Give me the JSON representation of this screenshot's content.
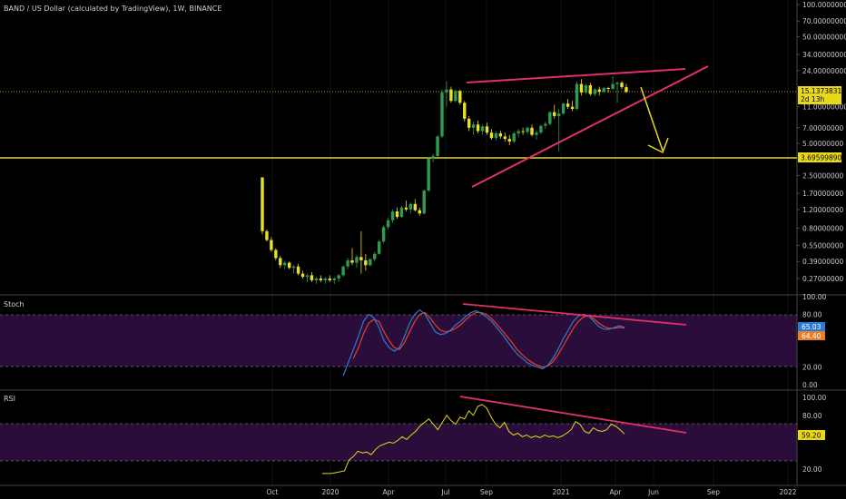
{
  "title": "BAND / US Dollar (calculated by TradingView), 1W, BINANCE",
  "colors": {
    "background": "#000000",
    "up_candle": "#2e9b52",
    "down_candle": "#e8e020",
    "trendline": "#e0306a",
    "support": "#e8d818",
    "arrow": "#e8d818",
    "osc_band": "#2a0d3a",
    "stoch_k": "#2a7ad8",
    "stoch_d": "#e8402a",
    "rsi": "#e8d818",
    "grid": "#1a1a1a"
  },
  "price_pane": {
    "y_ticks": [
      "100.00000000",
      "70.00000000",
      "50.00000000",
      "34.00000000",
      "24.00000000",
      "11.00000000",
      "7.00000000",
      "5.00000000",
      "2.50000000",
      "1.70000000",
      "1.20000000",
      "0.80000000",
      "0.55000000",
      "0.39000000",
      "0.27000000"
    ],
    "current_price": {
      "value": "15.13738317",
      "countdown": "2d 13h"
    },
    "support_level": "3.69599890"
  },
  "stoch_pane": {
    "name": "Stoch",
    "y_ticks": [
      "100.00",
      "80.00",
      "20.00",
      "0.00"
    ],
    "k_value": "65.03",
    "d_value": "64.40"
  },
  "rsi_pane": {
    "name": "RSI",
    "y_ticks": [
      "100.00",
      "80.00",
      "20.00"
    ],
    "value": "59.20"
  },
  "x_axis": {
    "labels": [
      "Oct",
      "2020",
      "Apr",
      "Jul",
      "Sep",
      "2021",
      "Apr",
      "Jun",
      "Sep",
      "2022"
    ]
  },
  "chart_data": {
    "type": "candlestick",
    "title": "BAND / US Dollar (calculated by TradingView), 1W, BINANCE",
    "scale": "log",
    "ohlc_weekly": [
      [
        2.4,
        2.4,
        0.7,
        0.75
      ],
      [
        0.75,
        0.78,
        0.6,
        0.62
      ],
      [
        0.62,
        0.66,
        0.48,
        0.5
      ],
      [
        0.5,
        0.52,
        0.4,
        0.42
      ],
      [
        0.42,
        0.44,
        0.34,
        0.36
      ],
      [
        0.36,
        0.4,
        0.33,
        0.38
      ],
      [
        0.38,
        0.39,
        0.33,
        0.34
      ],
      [
        0.34,
        0.36,
        0.3,
        0.35
      ],
      [
        0.35,
        0.37,
        0.29,
        0.3
      ],
      [
        0.3,
        0.32,
        0.27,
        0.28
      ],
      [
        0.28,
        0.3,
        0.25,
        0.29
      ],
      [
        0.29,
        0.31,
        0.25,
        0.26
      ],
      [
        0.26,
        0.28,
        0.24,
        0.27
      ],
      [
        0.27,
        0.29,
        0.25,
        0.26
      ],
      [
        0.26,
        0.28,
        0.24,
        0.27
      ],
      [
        0.27,
        0.29,
        0.25,
        0.26
      ],
      [
        0.26,
        0.28,
        0.24,
        0.27
      ],
      [
        0.27,
        0.3,
        0.25,
        0.29
      ],
      [
        0.29,
        0.36,
        0.28,
        0.35
      ],
      [
        0.35,
        0.42,
        0.33,
        0.4
      ],
      [
        0.4,
        0.52,
        0.36,
        0.38
      ],
      [
        0.38,
        0.45,
        0.34,
        0.43
      ],
      [
        0.43,
        0.75,
        0.3,
        0.4
      ],
      [
        0.4,
        0.46,
        0.32,
        0.36
      ],
      [
        0.36,
        0.42,
        0.35,
        0.41
      ],
      [
        0.41,
        0.48,
        0.39,
        0.46
      ],
      [
        0.46,
        0.62,
        0.45,
        0.6
      ],
      [
        0.6,
        0.85,
        0.58,
        0.82
      ],
      [
        0.82,
        1.0,
        0.78,
        0.95
      ],
      [
        0.95,
        1.2,
        0.9,
        1.15
      ],
      [
        1.15,
        1.25,
        0.98,
        1.02
      ],
      [
        1.02,
        1.3,
        1.0,
        1.25
      ],
      [
        1.25,
        1.45,
        1.15,
        1.2
      ],
      [
        1.2,
        1.4,
        1.1,
        1.35
      ],
      [
        1.35,
        1.5,
        1.15,
        1.18
      ],
      [
        1.18,
        1.25,
        1.05,
        1.1
      ],
      [
        1.1,
        1.85,
        1.08,
        1.8
      ],
      [
        1.8,
        3.7,
        1.75,
        3.6
      ],
      [
        3.6,
        4.0,
        3.3,
        3.8
      ],
      [
        3.8,
        6.0,
        3.7,
        5.8
      ],
      [
        5.8,
        16.0,
        5.6,
        15.0
      ],
      [
        15.0,
        19.0,
        11.0,
        16.0
      ],
      [
        16.0,
        17.0,
        12.0,
        12.5
      ],
      [
        12.5,
        16.0,
        12.0,
        15.5
      ],
      [
        15.5,
        16.0,
        11.5,
        12.0
      ],
      [
        12.0,
        12.5,
        8.0,
        8.5
      ],
      [
        8.5,
        9.0,
        6.5,
        7.0
      ],
      [
        7.0,
        8.0,
        6.0,
        7.5
      ],
      [
        7.5,
        8.2,
        6.2,
        6.5
      ],
      [
        6.5,
        7.5,
        6.0,
        7.2
      ],
      [
        7.2,
        7.8,
        6.0,
        6.3
      ],
      [
        6.3,
        6.8,
        5.4,
        5.6
      ],
      [
        5.6,
        6.5,
        5.3,
        6.2
      ],
      [
        6.2,
        6.6,
        5.5,
        5.8
      ],
      [
        5.8,
        6.3,
        5.2,
        5.5
      ],
      [
        5.5,
        6.0,
        4.8,
        5.2
      ],
      [
        5.2,
        6.4,
        5.0,
        6.2
      ],
      [
        6.2,
        6.8,
        5.7,
        6.5
      ],
      [
        6.5,
        7.0,
        6.0,
        6.4
      ],
      [
        6.4,
        7.2,
        6.1,
        7.0
      ],
      [
        7.0,
        7.5,
        5.8,
        6.0
      ],
      [
        6.0,
        6.6,
        5.4,
        6.3
      ],
      [
        6.3,
        7.5,
        6.1,
        7.3
      ],
      [
        7.3,
        8.0,
        6.8,
        7.6
      ],
      [
        7.6,
        10.0,
        7.4,
        9.8
      ],
      [
        9.8,
        11.5,
        8.5,
        9.0
      ],
      [
        9.0,
        10.5,
        4.2,
        9.5
      ],
      [
        9.5,
        12.0,
        9.2,
        11.8
      ],
      [
        11.8,
        13.0,
        10.5,
        11.0
      ],
      [
        11.0,
        12.5,
        10.0,
        10.5
      ],
      [
        10.5,
        19.0,
        10.2,
        18.0
      ],
      [
        18.0,
        20.0,
        14.0,
        15.0
      ],
      [
        15.0,
        18.0,
        14.5,
        17.5
      ],
      [
        17.5,
        18.5,
        14.0,
        14.5
      ],
      [
        14.5,
        16.5,
        13.8,
        16.0
      ],
      [
        16.0,
        17.0,
        14.0,
        15.2
      ],
      [
        15.2,
        16.8,
        14.8,
        16.5
      ],
      [
        16.5,
        17.0,
        15.0,
        16.2
      ],
      [
        16.2,
        21.5,
        15.8,
        18.0
      ],
      [
        18.0,
        19.0,
        12.0,
        18.5
      ],
      [
        18.5,
        19.2,
        16.0,
        16.8
      ],
      [
        16.8,
        18.0,
        14.8,
        15.14
      ]
    ],
    "stoch_k": [
      10,
      25,
      40,
      55,
      72,
      80,
      76,
      65,
      50,
      42,
      38,
      42,
      55,
      70,
      80,
      85,
      80,
      70,
      60,
      57,
      58,
      62,
      68,
      72,
      78,
      82,
      84,
      81,
      77,
      72,
      65,
      58,
      50,
      42,
      35,
      30,
      25,
      22,
      20,
      18,
      22,
      30,
      40,
      52,
      62,
      72,
      78,
      80,
      78,
      72,
      66,
      63,
      63,
      65,
      67,
      65.03
    ],
    "stoch_d": [
      null,
      null,
      30,
      42,
      58,
      70,
      74,
      72,
      60,
      50,
      42,
      40,
      48,
      60,
      72,
      80,
      82,
      76,
      68,
      62,
      60,
      61,
      64,
      68,
      74,
      79,
      82,
      82,
      80,
      75,
      69,
      62,
      55,
      48,
      40,
      34,
      29,
      25,
      22,
      20,
      21,
      26,
      34,
      44,
      54,
      64,
      72,
      77,
      78,
      75,
      70,
      66,
      64,
      64,
      65,
      64.4
    ],
    "rsi": [
      15,
      15,
      15,
      16,
      17,
      18,
      30,
      34,
      40,
      38,
      39,
      36,
      42,
      46,
      48,
      50,
      49,
      52,
      56,
      53,
      58,
      62,
      68,
      72,
      76,
      70,
      64,
      72,
      80,
      74,
      70,
      78,
      76,
      85,
      80,
      90,
      92,
      88,
      78,
      70,
      66,
      72,
      62,
      58,
      60,
      56,
      58,
      55,
      57,
      55,
      58,
      56,
      57,
      55,
      57,
      60,
      64,
      73,
      70,
      62,
      60,
      66,
      63,
      62,
      64,
      70,
      68,
      64,
      59.2
    ],
    "annotations": [
      "rising wedge",
      "bearish divergence on Stoch",
      "bearish divergence on RSI"
    ]
  }
}
